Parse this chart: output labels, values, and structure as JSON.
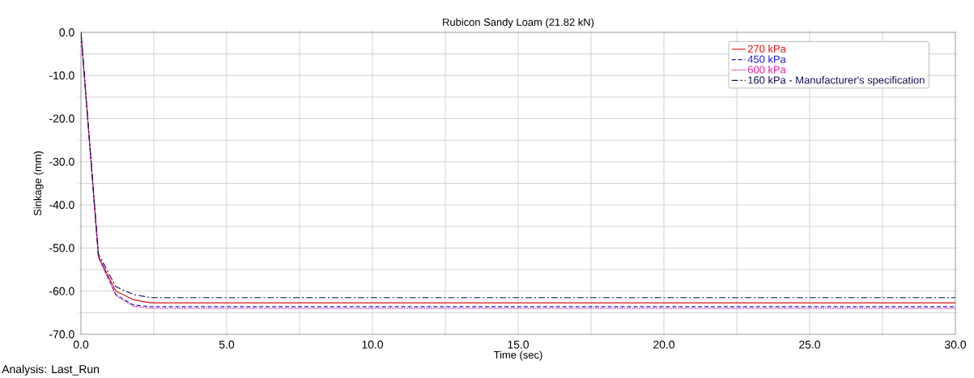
{
  "chart_data": {
    "type": "line",
    "title": "Rubicon Sandy Loam (21.82 kN)",
    "xlabel": "Time (sec)",
    "ylabel": "Sinkage (mm)",
    "annotations": [
      "Analysis:  Last_Run"
    ],
    "xlim": [
      0,
      30
    ],
    "ylim": [
      -70,
      0
    ],
    "xticks": [
      {
        "value": 0,
        "label": "0.0"
      },
      {
        "value": 2.5,
        "label": null
      },
      {
        "value": 5,
        "label": "5.0"
      },
      {
        "value": 7.5,
        "label": null
      },
      {
        "value": 10,
        "label": "10.0"
      },
      {
        "value": 12.5,
        "label": null
      },
      {
        "value": 15,
        "label": "15.0"
      },
      {
        "value": 17.5,
        "label": null
      },
      {
        "value": 20,
        "label": "20.0"
      },
      {
        "value": 22.5,
        "label": null
      },
      {
        "value": 25,
        "label": "25.0"
      },
      {
        "value": 27.5,
        "label": null
      },
      {
        "value": 30,
        "label": "30.0"
      }
    ],
    "yticks": [
      {
        "value": -70,
        "label": "-70.0"
      },
      {
        "value": -65,
        "label": null
      },
      {
        "value": -60,
        "label": "-60.0"
      },
      {
        "value": -55,
        "label": null
      },
      {
        "value": -50,
        "label": "-50.0"
      },
      {
        "value": -45,
        "label": null
      },
      {
        "value": -40,
        "label": "-40.0"
      },
      {
        "value": -35,
        "label": null
      },
      {
        "value": -30,
        "label": "-30.0"
      },
      {
        "value": -25,
        "label": null
      },
      {
        "value": -20,
        "label": "-20.0"
      },
      {
        "value": -15,
        "label": null
      },
      {
        "value": -10,
        "label": "-10.0"
      },
      {
        "value": -5,
        "label": null
      },
      {
        "value": 0,
        "label": "0.0"
      }
    ],
    "grid": true,
    "legend": "top right",
    "x": [
      0,
      0.6,
      1.2,
      1.8,
      2.4,
      30
    ],
    "series": [
      {
        "name": "270 kPa",
        "color": "#e01010",
        "line_style": "solid",
        "values": [
          0,
          -52,
          -60,
          -62,
          -62.7,
          -62.7
        ]
      },
      {
        "name": "450 kPa",
        "color": "#1a1ae0",
        "line_style": "dashed",
        "values": [
          0,
          -52,
          -60.8,
          -63.2,
          -63.6,
          -63.6
        ]
      },
      {
        "name": "600 kPa",
        "color": "#e020a0",
        "line_style": "dotted",
        "values": [
          0,
          -52.3,
          -61,
          -63.5,
          -64,
          -64
        ]
      },
      {
        "name": "160 kPa - Manufacturer's specification",
        "color": "#101050",
        "line_style": "dashdot",
        "values": [
          0,
          -51.4,
          -59,
          -60.8,
          -61.5,
          -61.5
        ]
      }
    ]
  }
}
